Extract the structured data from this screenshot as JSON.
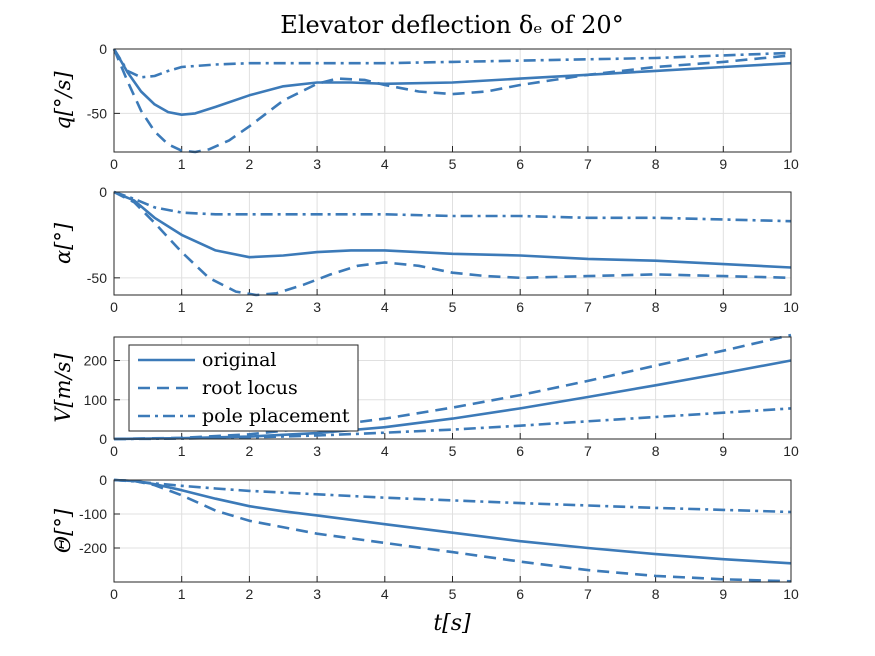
{
  "title": "Elevator deflection δₑ of 20°",
  "xlabel": "t[s]",
  "colors": {
    "line": "#3c7ab8",
    "grid": "#e0e0e0",
    "axis": "#262626"
  },
  "legend": {
    "placement": "upper-left of third panel",
    "entries": [
      {
        "label": "original",
        "style": "solid"
      },
      {
        "label": "root locus",
        "style": "dashed"
      },
      {
        "label": "pole placement",
        "style": "dashdot"
      }
    ]
  },
  "chart_data": [
    {
      "type": "line",
      "ylabel": "q[°/s]",
      "xlim": [
        0,
        10
      ],
      "ylim": [
        -80,
        0
      ],
      "xticks": [
        "0",
        "1",
        "2",
        "3",
        "4",
        "5",
        "6",
        "7",
        "8",
        "9",
        "10"
      ],
      "yticks": [
        {
          "value": 0,
          "label": "0"
        },
        {
          "value": -50,
          "label": "-50"
        }
      ],
      "series": [
        {
          "name": "original",
          "style": "solid",
          "x": [
            0,
            0.2,
            0.4,
            0.6,
            0.8,
            1,
            1.2,
            1.5,
            2,
            2.5,
            3,
            3.5,
            4,
            5,
            6,
            7,
            8,
            9,
            10
          ],
          "y": [
            0,
            -18,
            -33,
            -43,
            -49,
            -51,
            -50,
            -45,
            -36,
            -29,
            -26,
            -26,
            -27,
            -26,
            -23,
            -20,
            -17,
            -14,
            -11
          ]
        },
        {
          "name": "root locus",
          "style": "dashed",
          "x": [
            0,
            0.2,
            0.4,
            0.6,
            0.8,
            1,
            1.2,
            1.4,
            1.7,
            2,
            2.5,
            3,
            3.3,
            3.7,
            4,
            4.5,
            5,
            5.5,
            6,
            6.5,
            7,
            8,
            9,
            10
          ],
          "y": [
            0,
            -25,
            -48,
            -64,
            -74,
            -79,
            -80,
            -78,
            -71,
            -60,
            -40,
            -27,
            -23,
            -24,
            -28,
            -33,
            -35,
            -33,
            -28,
            -24,
            -20,
            -14,
            -10,
            -5
          ]
        },
        {
          "name": "pole placement",
          "style": "dashdot",
          "x": [
            0,
            0.2,
            0.4,
            0.6,
            0.8,
            1,
            1.5,
            2,
            3,
            4,
            5,
            6,
            7,
            8,
            9,
            10
          ],
          "y": [
            0,
            -17,
            -22,
            -21,
            -17,
            -14,
            -12,
            -11,
            -11,
            -11,
            -10,
            -9,
            -8,
            -7,
            -5,
            -3
          ]
        }
      ]
    },
    {
      "type": "line",
      "ylabel": "α[°]",
      "xlim": [
        0,
        10
      ],
      "ylim": [
        -60,
        0
      ],
      "xticks": [
        "0",
        "1",
        "2",
        "3",
        "4",
        "5",
        "6",
        "7",
        "8",
        "9",
        "10"
      ],
      "yticks": [
        {
          "value": 0,
          "label": "0"
        },
        {
          "value": -50,
          "label": "-50"
        }
      ],
      "series": [
        {
          "name": "original",
          "style": "solid",
          "x": [
            0,
            0.3,
            0.6,
            1,
            1.5,
            2,
            2.5,
            3,
            3.5,
            4,
            5,
            6,
            7,
            8,
            9,
            10
          ],
          "y": [
            0,
            -5,
            -15,
            -25,
            -34,
            -38,
            -37,
            -35,
            -34,
            -34,
            -36,
            -37,
            -39,
            -40,
            -42,
            -44
          ]
        },
        {
          "name": "root locus",
          "style": "dashed",
          "x": [
            0,
            0.3,
            0.6,
            1,
            1.4,
            1.8,
            2.1,
            2.4,
            2.8,
            3.2,
            3.6,
            4,
            4.5,
            5,
            5.5,
            6,
            7,
            8,
            9,
            10
          ],
          "y": [
            0,
            -6,
            -18,
            -35,
            -50,
            -58,
            -60,
            -59,
            -54,
            -48,
            -43,
            -41,
            -43,
            -47,
            -49,
            -50,
            -49,
            -48,
            -49,
            -50
          ]
        },
        {
          "name": "pole placement",
          "style": "dashdot",
          "x": [
            0,
            0.3,
            0.6,
            1,
            1.5,
            2,
            3,
            4,
            5,
            6,
            7,
            8,
            9,
            10
          ],
          "y": [
            0,
            -4,
            -9,
            -12,
            -13,
            -13,
            -13,
            -13,
            -14,
            -14,
            -15,
            -15,
            -16,
            -17
          ]
        }
      ]
    },
    {
      "type": "line",
      "ylabel": "V[m/s]",
      "xlim": [
        0,
        10
      ],
      "ylim": [
        0,
        260
      ],
      "xticks": [
        "0",
        "1",
        "2",
        "3",
        "4",
        "5",
        "6",
        "7",
        "8",
        "9",
        "10"
      ],
      "yticks": [
        {
          "value": 0,
          "label": "0"
        },
        {
          "value": 100,
          "label": "100"
        },
        {
          "value": 200,
          "label": "200"
        }
      ],
      "series": [
        {
          "name": "original",
          "style": "solid",
          "x": [
            0,
            1,
            2,
            3,
            4,
            5,
            6,
            7,
            8,
            9,
            10
          ],
          "y": [
            0,
            2,
            6,
            15,
            30,
            52,
            78,
            107,
            137,
            168,
            200
          ]
        },
        {
          "name": "root locus",
          "style": "dashed",
          "x": [
            0,
            1,
            2,
            3,
            4,
            5,
            6,
            7,
            8,
            9,
            10
          ],
          "y": [
            0,
            3,
            12,
            30,
            52,
            80,
            112,
            148,
            187,
            225,
            265
          ]
        },
        {
          "name": "pole placement",
          "style": "dashdot",
          "x": [
            0,
            1,
            2,
            3,
            4,
            5,
            6,
            7,
            8,
            9,
            10
          ],
          "y": [
            0,
            1,
            4,
            9,
            16,
            24,
            34,
            45,
            56,
            67,
            78
          ]
        }
      ]
    },
    {
      "type": "line",
      "ylabel": "Θ[°]",
      "xlim": [
        0,
        10
      ],
      "ylim": [
        -300,
        0
      ],
      "xticks": [
        "0",
        "1",
        "2",
        "3",
        "4",
        "5",
        "6",
        "7",
        "8",
        "9",
        "10"
      ],
      "yticks": [
        {
          "value": 0,
          "label": "0"
        },
        {
          "value": -100,
          "label": "-100"
        },
        {
          "value": -200,
          "label": "-200"
        }
      ],
      "series": [
        {
          "name": "original",
          "style": "solid",
          "x": [
            0,
            0.3,
            0.6,
            1,
            1.5,
            2,
            2.5,
            3,
            4,
            5,
            6,
            7,
            8,
            9,
            10
          ],
          "y": [
            0,
            -3,
            -12,
            -30,
            -55,
            -77,
            -92,
            -104,
            -130,
            -155,
            -180,
            -200,
            -218,
            -233,
            -245
          ]
        },
        {
          "name": "root locus",
          "style": "dashed",
          "x": [
            0,
            0.3,
            0.6,
            1,
            1.5,
            2,
            3,
            4,
            5,
            6,
            7,
            8,
            9,
            10
          ],
          "y": [
            0,
            -3,
            -15,
            -45,
            -90,
            -120,
            -158,
            -185,
            -212,
            -240,
            -265,
            -282,
            -292,
            -298
          ]
        },
        {
          "name": "pole placement",
          "style": "dashdot",
          "x": [
            0,
            0.3,
            0.6,
            1,
            1.5,
            2,
            3,
            4,
            5,
            6,
            7,
            8,
            9,
            10
          ],
          "y": [
            0,
            -4,
            -10,
            -17,
            -25,
            -32,
            -42,
            -52,
            -60,
            -68,
            -75,
            -82,
            -88,
            -94
          ]
        }
      ]
    }
  ]
}
